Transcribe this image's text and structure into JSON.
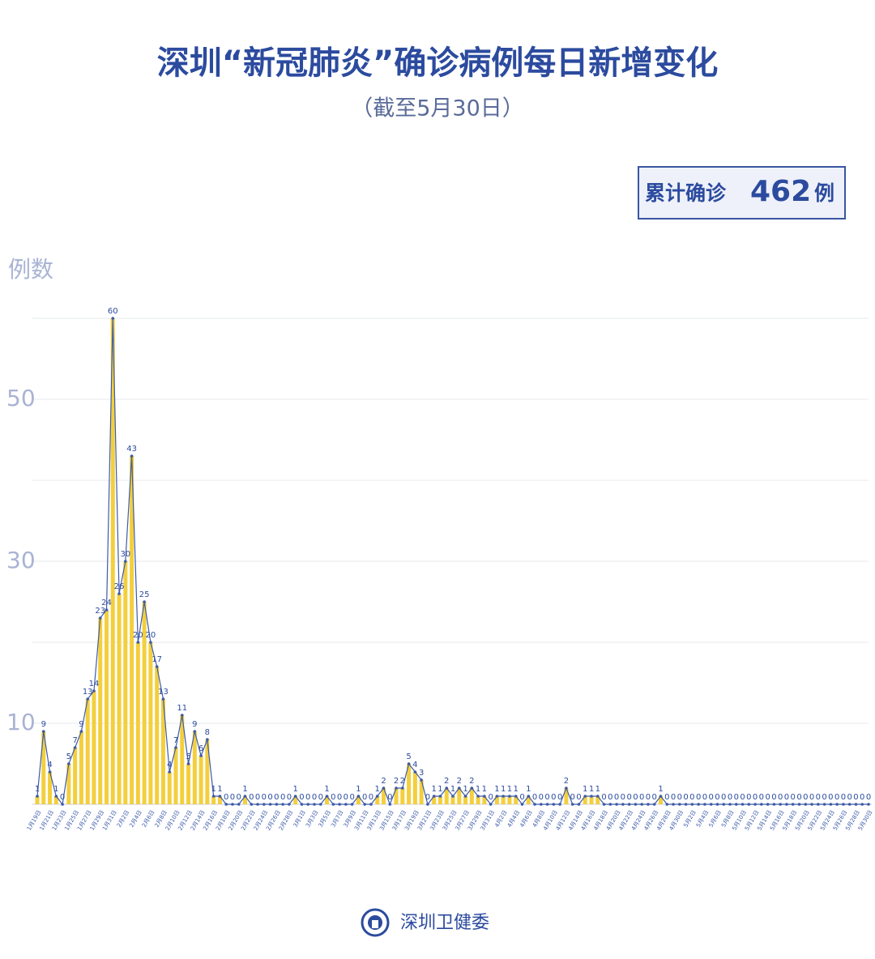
{
  "chart_data": {
    "type": "line",
    "title": "深圳“新冠肺炎”确诊病例每日新增变化",
    "subtitle": "（截至5月30日）",
    "total_box": {
      "prefix": "累计确诊",
      "value": 462,
      "suffix": "例"
    },
    "y_label": "例数",
    "footer": "深圳卫健委",
    "categories": [
      "1月19日",
      null,
      "1月21日",
      null,
      "1月23日",
      null,
      "1月25日",
      null,
      "1月27日",
      null,
      "1月29日",
      null,
      "1月31日",
      null,
      "2月2日",
      null,
      "2月4日",
      null,
      "2月6日",
      null,
      "2月8日",
      null,
      "2月10日",
      null,
      "2月12日",
      null,
      "2月14日",
      null,
      "2月16日",
      null,
      "2月18日",
      null,
      "2月20日",
      null,
      "2月22日",
      null,
      "2月24日",
      null,
      "2月26日",
      null,
      "2月28日",
      null,
      "3月1日",
      null,
      "3月3日",
      null,
      "3月5日",
      null,
      "3月7日",
      null,
      "3月9日",
      null,
      "3月11日",
      null,
      "3月13日",
      null,
      "3月15日",
      null,
      "3月17日",
      null,
      "3月19日",
      null,
      "3月21日",
      null,
      "3月23日",
      null,
      "3月25日",
      null,
      "3月27日",
      null,
      "3月29日",
      null,
      "3月31日",
      null,
      "4月2日",
      null,
      "4月4日",
      null,
      "4月6日",
      null,
      "4月8日",
      null,
      "4月10日",
      null,
      "4月12日",
      null,
      "4月14日",
      null,
      "4月16日",
      null,
      "4月18日",
      null,
      "4月20日",
      null,
      "4月22日",
      null,
      "4月24日",
      null,
      "4月26日",
      null,
      "4月28日",
      null,
      "4月30日",
      null,
      "5月2日",
      null,
      "5月4日",
      null,
      "5月6日",
      null,
      "5月8日",
      null,
      "5月10日",
      null,
      "5月12日",
      null,
      "5月14日",
      null,
      "5月16日",
      null,
      "5月18日",
      null,
      "5月20日",
      null,
      "5月22日",
      null,
      "5月24日",
      null,
      "5月26日",
      null,
      "5月28日",
      null,
      "5月30日"
    ],
    "values": [
      1,
      9,
      4,
      1,
      0,
      5,
      7,
      9,
      13,
      14,
      23,
      24,
      60,
      26,
      30,
      43,
      20,
      25,
      20,
      17,
      13,
      4,
      7,
      11,
      5,
      9,
      6,
      8,
      1,
      1,
      0,
      0,
      0,
      1,
      0,
      0,
      0,
      0,
      0,
      0,
      0,
      1,
      0,
      0,
      0,
      0,
      1,
      0,
      0,
      0,
      0,
      1,
      0,
      0,
      1,
      2,
      0,
      2,
      2,
      5,
      4,
      3,
      0,
      1,
      1,
      2,
      1,
      2,
      1,
      2,
      1,
      1,
      0,
      1,
      1,
      1,
      1,
      0,
      1,
      0,
      0,
      0,
      0,
      0,
      2,
      0,
      0,
      1,
      1,
      1,
      0,
      0,
      0,
      0,
      0,
      0,
      0,
      0,
      0,
      1,
      0,
      0,
      0,
      0,
      0,
      0,
      0,
      0,
      0,
      0,
      0,
      0,
      0,
      0,
      0,
      0,
      0,
      0,
      0,
      0,
      0,
      0,
      0,
      0,
      0,
      0,
      0,
      0,
      0,
      0,
      0,
      0,
      0
    ],
    "line_color": "#3d5ba9",
    "bar_color": "#f3cf3c",
    "ylim": [
      0,
      60
    ],
    "yticks": [
      10,
      30,
      50
    ],
    "minor_gridlines": [
      20,
      40,
      60
    ],
    "grid": true
  }
}
